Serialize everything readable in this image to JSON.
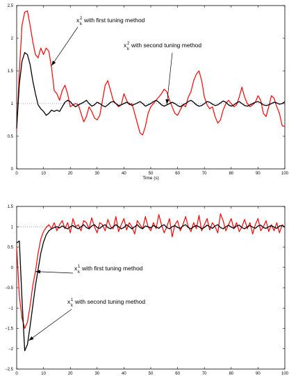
{
  "chart_data": [
    {
      "type": "line",
      "xlabel": "Time (s)",
      "ylabel": "",
      "xlim": [
        0,
        100
      ],
      "ylim": [
        0,
        2.5
      ],
      "x_ticks": [
        0,
        10,
        20,
        30,
        40,
        50,
        60,
        70,
        80,
        90,
        100
      ],
      "x_tick_labels": [
        "0",
        "10",
        "20",
        "30",
        "40",
        "50",
        "60",
        "70",
        "80",
        "90",
        "100"
      ],
      "y_ticks": [
        0,
        0.5,
        1,
        1.5,
        2,
        2.5
      ],
      "y_tick_labels": [
        "0",
        "0.5",
        "1",
        "1.5",
        "2",
        "2.5"
      ],
      "reference_line": 1,
      "annotations": [
        {
          "base": "x",
          "sub": "k",
          "sup": "2",
          "text": "with first tuning method",
          "target": [
            13,
            1.58
          ],
          "anchor": "upper-left",
          "color": "#000000"
        },
        {
          "base": "x",
          "sub": "k",
          "sup": "2",
          "text": "with second tuning method",
          "target": [
            56,
            0.99
          ],
          "anchor": "upper-right",
          "color": "#000000"
        }
      ],
      "series": [
        {
          "color": "#ff0000",
          "x": [
            0,
            1,
            2,
            3,
            4,
            5,
            6,
            7,
            8,
            9,
            10,
            11,
            12,
            13,
            14,
            15,
            16,
            17,
            18,
            19,
            20,
            21,
            22,
            23,
            24,
            25,
            26,
            27,
            28,
            29,
            30,
            31,
            32,
            33,
            34,
            35,
            36,
            37,
            38,
            39,
            40,
            41,
            42,
            43,
            44,
            45,
            46,
            47,
            48,
            49,
            50,
            51,
            52,
            53,
            54,
            55,
            56,
            57,
            58,
            59,
            60,
            61,
            62,
            63,
            64,
            65,
            66,
            67,
            68,
            69,
            70,
            71,
            72,
            73,
            74,
            75,
            76,
            77,
            78,
            79,
            80,
            81,
            82,
            83,
            84,
            85,
            86,
            87,
            88,
            89,
            90,
            91,
            92,
            93,
            94,
            95,
            96,
            97,
            98,
            99,
            100
          ],
          "values": [
            0.6,
            1.5,
            2.2,
            2.4,
            2.42,
            2.2,
            1.95,
            1.75,
            1.7,
            1.85,
            1.75,
            1.85,
            1.8,
            1.55,
            1.2,
            1.15,
            1.05,
            1.2,
            1.28,
            1.15,
            0.95,
            0.98,
            1.0,
            0.98,
            0.85,
            0.72,
            0.8,
            0.95,
            0.88,
            0.78,
            0.75,
            0.82,
            1.05,
            1.28,
            1.35,
            1.2,
            1.05,
            1.0,
            0.95,
            0.98,
            1.15,
            1.05,
            0.98,
            1.0,
            0.85,
            0.7,
            0.55,
            0.52,
            0.65,
            0.85,
            0.95,
            1.0,
            1.05,
            1.1,
            1.15,
            1.22,
            1.18,
            1.05,
            0.95,
            0.85,
            0.82,
            0.9,
            0.98,
            0.95,
            1.1,
            1.18,
            1.35,
            1.45,
            1.5,
            1.35,
            1.1,
            0.98,
            0.92,
            0.95,
            0.8,
            0.7,
            0.75,
            0.9,
            1.0,
            1.05,
            1.0,
            0.95,
            0.98,
            1.1,
            1.25,
            1.1,
            1.0,
            0.95,
            0.98,
            1.02,
            1.12,
            1.05,
            0.85,
            0.8,
            0.95,
            1.12,
            1.08,
            0.95,
            0.85,
            0.66,
            0.65
          ]
        },
        {
          "color": "#000000",
          "x": [
            0,
            1,
            2,
            3,
            4,
            5,
            6,
            7,
            8,
            9,
            10,
            11,
            12,
            13,
            14,
            15,
            16,
            17,
            18,
            19,
            20,
            21,
            22,
            23,
            24,
            25,
            26,
            27,
            28,
            29,
            30,
            31,
            32,
            33,
            34,
            35,
            36,
            37,
            38,
            39,
            40,
            41,
            42,
            43,
            44,
            45,
            46,
            47,
            48,
            49,
            50,
            51,
            52,
            53,
            54,
            55,
            56,
            57,
            58,
            59,
            60,
            61,
            62,
            63,
            64,
            65,
            66,
            67,
            68,
            69,
            70,
            71,
            72,
            73,
            74,
            75,
            76,
            77,
            78,
            79,
            80,
            81,
            82,
            83,
            84,
            85,
            86,
            87,
            88,
            89,
            90,
            91,
            92,
            93,
            94,
            95,
            96,
            97,
            98,
            99,
            100
          ],
          "values": [
            0.62,
            1.3,
            1.65,
            1.78,
            1.75,
            1.6,
            1.35,
            1.15,
            0.98,
            0.92,
            0.88,
            0.82,
            0.85,
            0.9,
            0.88,
            0.9,
            0.88,
            0.95,
            1.02,
            1.05,
            1.03,
            0.98,
            0.95,
            0.98,
            1.0,
            1.02,
            1.05,
            1.0,
            0.96,
            0.98,
            1.02,
            1.0,
            0.97,
            0.95,
            0.98,
            1.02,
            1.03,
            1.0,
            0.97,
            0.98,
            1.0,
            1.02,
            1.0,
            0.97,
            0.99,
            1.01,
            1.03,
            1.0,
            0.96,
            0.98,
            1.0,
            1.03,
            1.05,
            1.02,
            0.98,
            0.96,
            0.98,
            1.0,
            1.02,
            1.0,
            0.97,
            0.95,
            0.98,
            1.0,
            1.03,
            1.05,
            1.02,
            0.98,
            0.96,
            0.97,
            1.0,
            1.03,
            1.02,
            0.99,
            0.97,
            0.98,
            1.01,
            1.04,
            1.02,
            0.98,
            0.96,
            0.98,
            1.01,
            1.03,
            1.0,
            0.97,
            0.96,
            0.98,
            1.0,
            1.02,
            1.03,
            1.01,
            0.98,
            0.97,
            0.98,
            1.0,
            1.02,
            1.01,
            0.99,
            1.0,
            1.03
          ]
        }
      ]
    },
    {
      "type": "line",
      "xlabel": "",
      "ylabel": "",
      "xlim": [
        0,
        100
      ],
      "ylim": [
        -2.5,
        1.5
      ],
      "x_ticks": [
        0,
        10,
        20,
        30,
        40,
        50,
        60,
        70,
        80,
        90,
        100
      ],
      "x_tick_labels": [
        "0",
        "10",
        "20",
        "30",
        "40",
        "50",
        "60",
        "70",
        "80",
        "90",
        "100"
      ],
      "y_ticks": [
        -2.5,
        -2,
        -1.5,
        -1,
        -0.5,
        0,
        0.5,
        1,
        1.5
      ],
      "y_tick_labels": [
        "−2.5",
        "−2",
        "−1.5",
        "−1",
        "−0.5",
        "0",
        "0.5",
        "1",
        "1.5"
      ],
      "reference_line": 1,
      "annotations": [
        {
          "base": "x",
          "sub": "k",
          "sup": "1",
          "text": "with first tuning method",
          "target": [
            7,
            -0.1
          ],
          "anchor": "right",
          "color": "#000000"
        },
        {
          "base": "x",
          "sub": "k",
          "sup": "1",
          "text": "with second tuning method",
          "target": [
            4.5,
            -1.8
          ],
          "anchor": "lower-right",
          "color": "#000000"
        }
      ],
      "series": [
        {
          "color": "#ff0000",
          "x": [
            0,
            1,
            2,
            3,
            4,
            5,
            6,
            7,
            8,
            9,
            10,
            11,
            12,
            13,
            14,
            15,
            16,
            17,
            18,
            19,
            20,
            21,
            22,
            23,
            24,
            25,
            26,
            27,
            28,
            29,
            30,
            31,
            32,
            33,
            34,
            35,
            36,
            37,
            38,
            39,
            40,
            41,
            42,
            43,
            44,
            45,
            46,
            47,
            48,
            49,
            50,
            51,
            52,
            53,
            54,
            55,
            56,
            57,
            58,
            59,
            60,
            61,
            62,
            63,
            64,
            65,
            66,
            67,
            68,
            69,
            70,
            71,
            72,
            73,
            74,
            75,
            76,
            77,
            78,
            79,
            80,
            81,
            82,
            83,
            84,
            85,
            86,
            87,
            88,
            89,
            90,
            91,
            92,
            93,
            94,
            95,
            96,
            97,
            98,
            99,
            100
          ],
          "values": [
            0.5,
            -0.7,
            -1.25,
            -1.5,
            -1.35,
            -0.95,
            -0.45,
            -0.1,
            0.35,
            0.7,
            0.88,
            0.98,
            1.05,
            0.95,
            1.1,
            0.9,
            1.05,
            1.15,
            0.95,
            1.1,
            0.85,
            1.2,
            1.0,
            1.05,
            0.9,
            1.15,
            1.1,
            0.95,
            1.22,
            1.0,
            0.85,
            1.1,
            1.05,
            0.9,
            1.18,
            1.0,
            0.95,
            1.25,
            0.88,
            1.05,
            1.2,
            0.92,
            1.1,
            1.0,
            0.82,
            1.15,
            1.05,
            0.95,
            1.25,
            1.0,
            0.9,
            1.1,
            0.95,
            1.3,
            1.05,
            0.85,
            1.0,
            1.2,
            0.75,
            1.05,
            1.15,
            0.9,
            1.05,
            1.25,
            1.0,
            0.88,
            1.1,
            0.95,
            1.28,
            0.9,
            1.05,
            1.2,
            0.92,
            1.1,
            1.0,
            0.85,
            1.32,
            1.15,
            0.9,
            1.05,
            1.2,
            0.95,
            1.1,
            0.88,
            1.0,
            1.18,
            0.95,
            1.1,
            0.82,
            1.05,
            1.2,
            0.9,
            1.0,
            1.15,
            0.88,
            1.05,
            0.9,
            1.1,
            0.85,
            1.05,
            0.98
          ]
        },
        {
          "color": "#000000",
          "x": [
            0,
            1,
            2,
            3,
            4,
            5,
            6,
            7,
            8,
            9,
            10,
            11,
            12,
            13,
            14,
            15,
            16,
            17,
            18,
            19,
            20,
            21,
            22,
            23,
            24,
            25,
            26,
            27,
            28,
            29,
            30,
            31,
            32,
            33,
            34,
            35,
            36,
            37,
            38,
            39,
            40,
            41,
            42,
            43,
            44,
            45,
            46,
            47,
            48,
            49,
            50,
            51,
            52,
            53,
            54,
            55,
            56,
            57,
            58,
            59,
            60,
            61,
            62,
            63,
            64,
            65,
            66,
            67,
            68,
            69,
            70,
            71,
            72,
            73,
            74,
            75,
            76,
            77,
            78,
            79,
            80,
            81,
            82,
            83,
            84,
            85,
            86,
            87,
            88,
            89,
            90,
            91,
            92,
            93,
            94,
            95,
            96,
            97,
            98,
            99,
            100
          ],
          "values": [
            0.6,
            0.65,
            -0.8,
            -2.05,
            -1.9,
            -1.45,
            -0.95,
            -0.45,
            -0.05,
            0.35,
            0.62,
            0.8,
            0.9,
            0.95,
            0.98,
            1.0,
            0.97,
            1.02,
            0.98,
            0.95,
            1.0,
            1.03,
            0.98,
            0.95,
            1.0,
            1.05,
            0.98,
            0.95,
            1.02,
            1.05,
            0.98,
            0.96,
            1.02,
            1.05,
            0.98,
            0.95,
            1.0,
            1.05,
            1.0,
            0.95,
            0.98,
            1.05,
            1.0,
            0.95,
            1.0,
            1.05,
            0.98,
            0.95,
            1.02,
            1.0,
            0.97,
            1.03,
            1.0,
            0.96,
            1.02,
            1.05,
            0.98,
            0.95,
            1.0,
            1.03,
            0.98,
            0.96,
            1.02,
            1.05,
            0.98,
            0.95,
            1.0,
            1.03,
            1.0,
            0.95,
            0.98,
            1.04,
            1.0,
            0.96,
            1.02,
            1.05,
            0.98,
            0.95,
            1.0,
            1.04,
            0.99,
            0.96,
            1.02,
            1.04,
            0.98,
            0.95,
            1.0,
            1.03,
            0.99,
            0.96,
            1.02,
            1.04,
            0.98,
            0.96,
            1.0,
            1.03,
            0.99,
            0.96,
            1.02,
            1.03,
            0.99
          ]
        }
      ]
    }
  ]
}
